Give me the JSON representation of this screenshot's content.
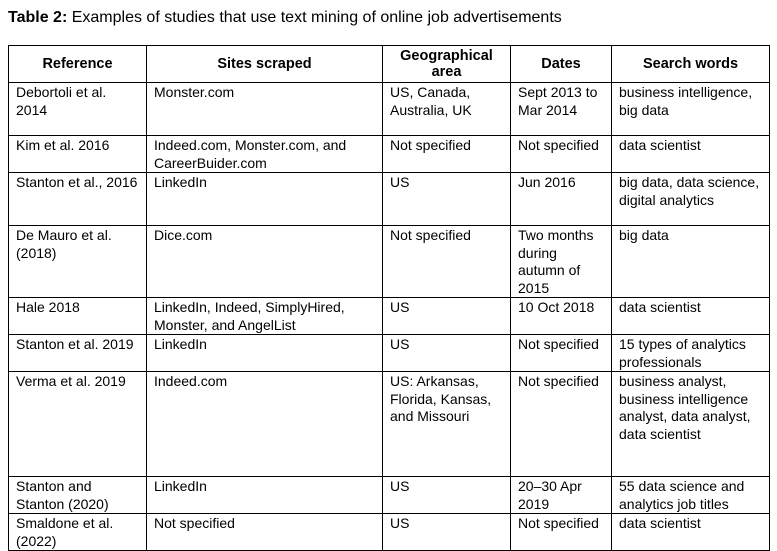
{
  "caption": {
    "label": "Table 2:",
    "text": "Examples of studies that use text mining of online job advertisements"
  },
  "table": {
    "header": [
      "Reference",
      "Sites scraped",
      "Geographical area",
      "Dates",
      "Search words"
    ],
    "rows": [
      [
        "Debortoli et al. 2014",
        "Monster.com",
        "US, Canada, Australia, UK",
        "Sept 2013 to Mar 2014",
        "business intelligence, big data"
      ],
      [
        "Kim et al. 2016",
        "Indeed.com, Monster.com, and CareerBuider.com",
        "Not specified",
        "Not specified",
        "data scientist"
      ],
      [
        "Stanton et al., 2016",
        "LinkedIn",
        "US",
        "Jun 2016",
        "big data, data science, digital analytics"
      ],
      [
        "De Mauro et al. (2018)",
        "Dice.com",
        "Not specified",
        "Two months during autumn of 2015",
        "big data"
      ],
      [
        "Hale 2018",
        "LinkedIn, Indeed, SimplyHired, Monster, and AngelList",
        "US",
        "10 Oct 2018",
        "data scientist"
      ],
      [
        "Stanton et al. 2019",
        "LinkedIn",
        "US",
        "Not specified",
        "15 types of analytics professionals"
      ],
      [
        "Verma et al. 2019",
        "Indeed.com",
        "US: Arkansas, Florida, Kansas, and Missouri",
        "Not specified",
        "business analyst, business intelligence analyst, data analyst, data scientist"
      ],
      [
        "Stanton and Stanton (2020)",
        "LinkedIn",
        "US",
        "20–30 Apr 2019",
        "55 data science and analytics job titles"
      ],
      [
        "Smaldone et al. (2022)",
        "Not specified",
        "US",
        "Not specified",
        "data scientist"
      ]
    ]
  }
}
